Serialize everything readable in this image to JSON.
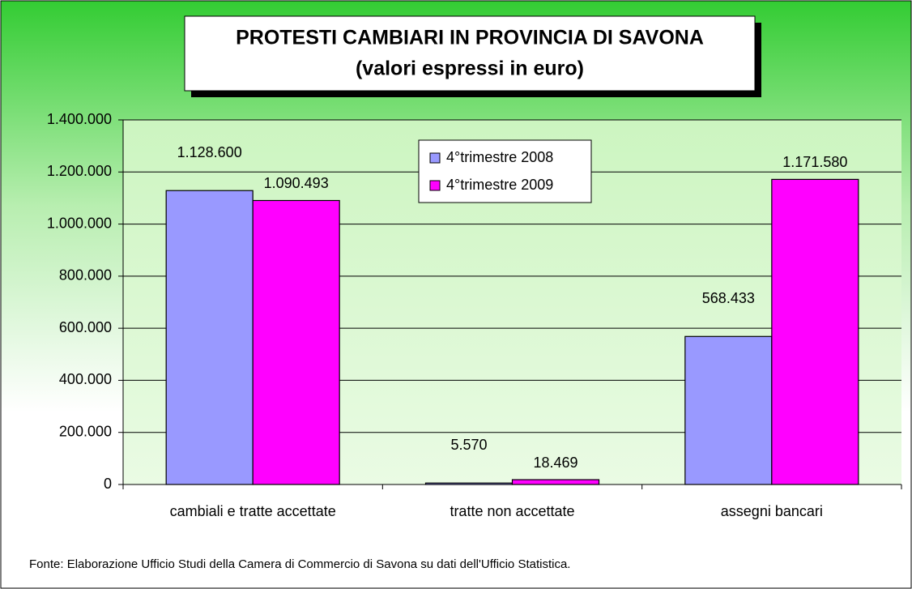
{
  "chart_data": {
    "type": "bar",
    "title": "PROTESTI CAMBIARI IN PROVINCIA DI SAVONA",
    "subtitle": "(valori espressi in euro)",
    "categories": [
      "cambiali e tratte accettate",
      "tratte non accettate",
      "assegni bancari"
    ],
    "series": [
      {
        "name": "4°trimestre 2008",
        "color": "#9999ff",
        "values": [
          1128600,
          5570,
          568433
        ],
        "value_labels": [
          "1.128.600",
          "5.570",
          "568.433"
        ]
      },
      {
        "name": "4°trimestre 2009",
        "color": "#ff00ff",
        "values": [
          1090493,
          18469,
          1171580
        ],
        "value_labels": [
          "1.090.493",
          "18.469",
          "1.171.580"
        ]
      }
    ],
    "ylim": [
      0,
      1400000
    ],
    "yticks": [
      0,
      {
        "value": 200000,
        "label": "200.000"
      },
      {
        "value": 400000,
        "label": "400.000"
      },
      {
        "value": 600000,
        "label": "600.000"
      },
      {
        "value": 800000,
        "label": "800.000"
      },
      {
        "value": 1000000,
        "label": "1.000.000"
      },
      {
        "value": 1200000,
        "label": "1.200.000"
      },
      {
        "value": 1400000,
        "label": "1.400.000"
      }
    ],
    "grid": true,
    "legend": "top-center",
    "source": "Fonte: Elaborazione Ufficio Studi della Camera di Commercio di Savona su dati dell'Ufficio Statistica."
  }
}
